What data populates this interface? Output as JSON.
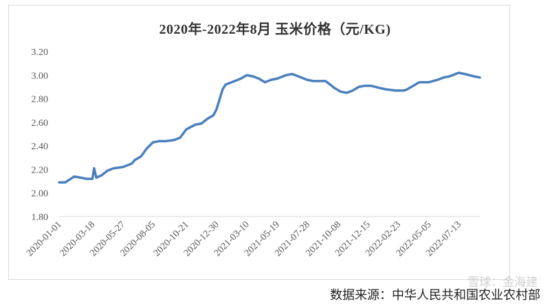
{
  "chart_data": {
    "type": "line",
    "title": "2020年-2022年8月 玉米价格（元/KG)",
    "xlabel": "",
    "ylabel": "",
    "ylim": [
      1.8,
      3.2
    ],
    "yticks": [
      "1.80",
      "2.00",
      "2.20",
      "2.40",
      "2.60",
      "2.80",
      "3.00",
      "3.20"
    ],
    "xticks": [
      "2020-01-01",
      "2020-03-18",
      "2020-05-27",
      "2020-08-05",
      "2020-10-21",
      "2020-12-30",
      "2021-03-10",
      "2021-05-19",
      "2021-07-28",
      "2021-10-08",
      "2021-12-15",
      "2022-02-23",
      "2022-05-05",
      "2022-07-13"
    ],
    "grid": false,
    "line_color": "#4a7fbd",
    "series": [
      {
        "points": [
          [
            "2020-01-01",
            2.09
          ],
          [
            "2020-01-15",
            2.09
          ],
          [
            "2020-02-05",
            2.14
          ],
          [
            "2020-02-20",
            2.13
          ],
          [
            "2020-03-05",
            2.12
          ],
          [
            "2020-03-18",
            2.12
          ],
          [
            "2020-03-22",
            2.21
          ],
          [
            "2020-03-27",
            2.13
          ],
          [
            "2020-04-08",
            2.15
          ],
          [
            "2020-04-22",
            2.19
          ],
          [
            "2020-05-06",
            2.21
          ],
          [
            "2020-05-27",
            2.22
          ],
          [
            "2020-06-17",
            2.25
          ],
          [
            "2020-06-24",
            2.28
          ],
          [
            "2020-07-08",
            2.31
          ],
          [
            "2020-07-22",
            2.38
          ],
          [
            "2020-08-05",
            2.43
          ],
          [
            "2020-08-19",
            2.44
          ],
          [
            "2020-09-02",
            2.44
          ],
          [
            "2020-09-23",
            2.45
          ],
          [
            "2020-10-07",
            2.47
          ],
          [
            "2020-10-21",
            2.54
          ],
          [
            "2020-11-11",
            2.58
          ],
          [
            "2020-11-25",
            2.59
          ],
          [
            "2020-12-09",
            2.63
          ],
          [
            "2020-12-23",
            2.66
          ],
          [
            "2020-12-30",
            2.71
          ],
          [
            "2021-01-13",
            2.88
          ],
          [
            "2021-01-20",
            2.92
          ],
          [
            "2021-02-10",
            2.95
          ],
          [
            "2021-02-24",
            2.97
          ],
          [
            "2021-03-10",
            3.0
          ],
          [
            "2021-03-24",
            2.99
          ],
          [
            "2021-04-07",
            2.97
          ],
          [
            "2021-04-21",
            2.94
          ],
          [
            "2021-05-05",
            2.96
          ],
          [
            "2021-05-19",
            2.97
          ],
          [
            "2021-06-09",
            3.0
          ],
          [
            "2021-06-23",
            3.01
          ],
          [
            "2021-07-07",
            2.99
          ],
          [
            "2021-07-28",
            2.96
          ],
          [
            "2021-08-11",
            2.95
          ],
          [
            "2021-09-08",
            2.95
          ],
          [
            "2021-09-29",
            2.89
          ],
          [
            "2021-10-13",
            2.86
          ],
          [
            "2021-10-27",
            2.85
          ],
          [
            "2021-11-10",
            2.87
          ],
          [
            "2021-11-24",
            2.9
          ],
          [
            "2021-12-08",
            2.91
          ],
          [
            "2021-12-22",
            2.91
          ],
          [
            "2022-01-12",
            2.89
          ],
          [
            "2022-01-26",
            2.88
          ],
          [
            "2022-02-16",
            2.87
          ],
          [
            "2022-03-09",
            2.87
          ],
          [
            "2022-03-16",
            2.88
          ],
          [
            "2022-03-30",
            2.91
          ],
          [
            "2022-04-13",
            2.94
          ],
          [
            "2022-05-05",
            2.94
          ],
          [
            "2022-05-25",
            2.96
          ],
          [
            "2022-06-08",
            2.98
          ],
          [
            "2022-06-22",
            2.99
          ],
          [
            "2022-07-13",
            3.02
          ],
          [
            "2022-07-27",
            3.01
          ],
          [
            "2022-08-17",
            2.99
          ],
          [
            "2022-08-31",
            2.98
          ]
        ]
      }
    ]
  },
  "source": "数据来源：中华人民共和国农业农村部",
  "watermark": "雪球：金海建"
}
